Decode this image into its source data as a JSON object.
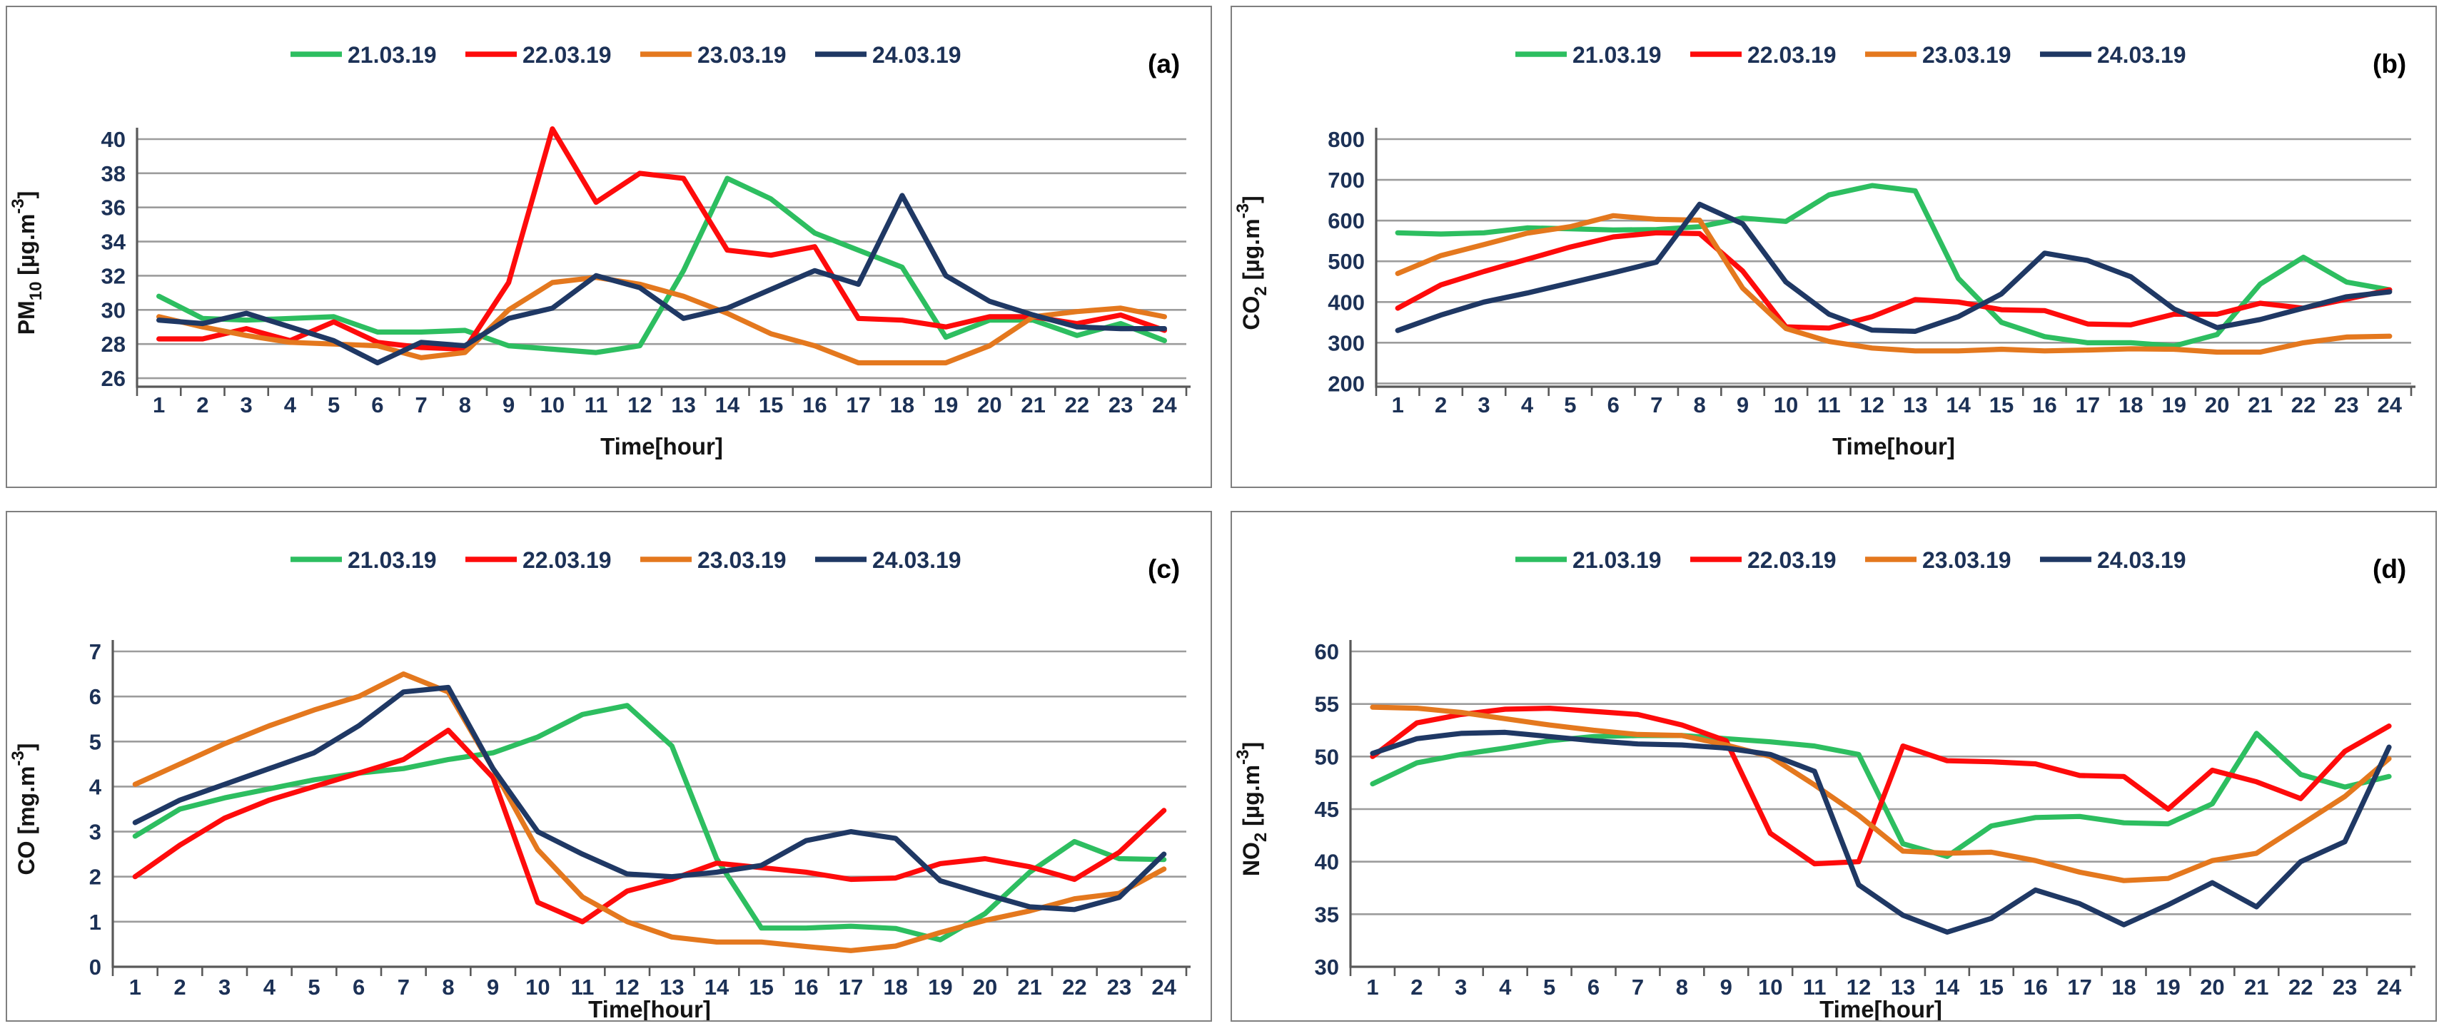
{
  "colors": {
    "green": "#2dbe60",
    "red": "#fe0b0b",
    "orange": "#e4781e",
    "navy": "#1f3864",
    "gridline": "#9c9c9c",
    "axis_line": "#595959",
    "tick_text": "#1c3156",
    "title_text": "#141414",
    "panel_border": "#7f7f7f",
    "panel_letter": "#000000"
  },
  "legend": {
    "position": "top",
    "items": [
      {
        "label": "21.03.19",
        "color_key": "green"
      },
      {
        "label": "22.03.19",
        "color_key": "red"
      },
      {
        "label": "23.03.19",
        "color_key": "orange"
      },
      {
        "label": "24.03.19",
        "color_key": "navy"
      }
    ]
  },
  "chart_data": [
    {
      "id": "a",
      "panel_label": "(a)",
      "type": "line",
      "pollutant": "PM10",
      "title": "",
      "ylabel_plain": "PM10 [µg.m-3]",
      "ylabel_parts": [
        {
          "t": "PM"
        },
        {
          "t": "10",
          "style": "sub"
        },
        {
          "t": " [µg.m"
        },
        {
          "t": "-3",
          "style": "sup"
        },
        {
          "t": "]"
        }
      ],
      "xlabel": "Time[hour]",
      "x": [
        1,
        2,
        3,
        4,
        5,
        6,
        7,
        8,
        9,
        10,
        11,
        12,
        13,
        14,
        15,
        16,
        17,
        18,
        19,
        20,
        21,
        22,
        23,
        24
      ],
      "ylim": [
        25.5,
        41
      ],
      "yticks": [
        26,
        28,
        30,
        32,
        34,
        36,
        38,
        40
      ],
      "grid": true,
      "legend_position": "top",
      "series": [
        {
          "name": "21.03.19",
          "color_key": "green",
          "values": [
            30.8,
            29.5,
            29.4,
            29.5,
            29.6,
            28.7,
            28.7,
            28.8,
            27.9,
            27.7,
            27.5,
            27.9,
            32.3,
            37.7,
            36.5,
            34.5,
            33.5,
            32.5,
            28.4,
            29.4,
            29.4,
            28.5,
            29.2,
            28.2
          ]
        },
        {
          "name": "22.03.19",
          "color_key": "red",
          "values": [
            28.3,
            28.3,
            28.9,
            28.2,
            29.3,
            28.1,
            27.8,
            27.7,
            31.6,
            40.6,
            36.3,
            38.0,
            37.7,
            33.5,
            33.2,
            33.7,
            29.5,
            29.4,
            29.0,
            29.6,
            29.6,
            29.2,
            29.7,
            28.8
          ]
        },
        {
          "name": "23.03.19",
          "color_key": "orange",
          "values": [
            29.6,
            29.0,
            28.5,
            28.1,
            28.0,
            27.9,
            27.2,
            27.5,
            30.0,
            31.6,
            31.9,
            31.5,
            30.8,
            29.8,
            28.6,
            27.9,
            26.9,
            26.9,
            26.9,
            27.9,
            29.6,
            29.9,
            30.1,
            29.6
          ]
        },
        {
          "name": "24.03.19",
          "color_key": "navy",
          "values": [
            29.4,
            29.2,
            29.8,
            29.0,
            28.2,
            26.9,
            28.1,
            27.9,
            29.5,
            30.1,
            32.0,
            31.3,
            29.5,
            30.1,
            31.2,
            32.3,
            31.5,
            36.7,
            32.0,
            30.5,
            29.7,
            29.0,
            28.9,
            28.9
          ]
        }
      ]
    },
    {
      "id": "b",
      "panel_label": "(b)",
      "type": "line",
      "pollutant": "CO2",
      "title": "",
      "ylabel_plain": "CO2 [µg.m-3]",
      "ylabel_parts": [
        {
          "t": "CO"
        },
        {
          "t": "2",
          "style": "sub"
        },
        {
          "t": " [µg.m"
        },
        {
          "t": "-3",
          "style": "sup"
        },
        {
          "t": "]"
        }
      ],
      "xlabel": "Time[hour]",
      "x": [
        1,
        2,
        3,
        4,
        5,
        6,
        7,
        8,
        9,
        10,
        11,
        12,
        13,
        14,
        15,
        16,
        17,
        18,
        19,
        20,
        21,
        22,
        23,
        24
      ],
      "ylim": [
        192,
        820
      ],
      "yticks": [
        200,
        300,
        400,
        500,
        600,
        700,
        800
      ],
      "grid": true,
      "legend_position": "top",
      "series": [
        {
          "name": "21.03.19",
          "color_key": "green",
          "values": [
            570,
            567,
            570,
            582,
            580,
            577,
            578,
            585,
            606,
            598,
            663,
            686,
            673,
            458,
            350,
            315,
            300,
            300,
            292,
            320,
            444,
            510,
            449,
            430
          ]
        },
        {
          "name": "22.03.19",
          "color_key": "red",
          "values": [
            385,
            442,
            475,
            505,
            535,
            560,
            570,
            568,
            476,
            339,
            336,
            364,
            406,
            400,
            381,
            379,
            346,
            344,
            370,
            370,
            397,
            385,
            407,
            430
          ]
        },
        {
          "name": "23.03.19",
          "color_key": "orange",
          "values": [
            470,
            514,
            541,
            569,
            585,
            612,
            603,
            601,
            434,
            335,
            303,
            287,
            280,
            280,
            284,
            280,
            282,
            285,
            284,
            277,
            277,
            300,
            314,
            316
          ]
        },
        {
          "name": "24.03.19",
          "color_key": "navy",
          "values": [
            330,
            368,
            400,
            422,
            447,
            472,
            498,
            640,
            592,
            449,
            370,
            331,
            328,
            364,
            420,
            520,
            502,
            462,
            383,
            337,
            357,
            385,
            413,
            425
          ]
        }
      ]
    },
    {
      "id": "c",
      "panel_label": "(c)",
      "type": "line",
      "pollutant": "CO",
      "title": "",
      "ylabel_plain": "CO [mg.m-3]",
      "ylabel_parts": [
        {
          "t": "CO [mg.m"
        },
        {
          "t": "-3",
          "style": "sup"
        },
        {
          "t": "]"
        }
      ],
      "xlabel": "Time[hour]",
      "x": [
        1,
        2,
        3,
        4,
        5,
        6,
        7,
        8,
        9,
        10,
        11,
        12,
        13,
        14,
        15,
        16,
        17,
        18,
        19,
        20,
        21,
        22,
        23,
        24
      ],
      "ylim": [
        0,
        7.3
      ],
      "yticks": [
        0,
        1,
        2,
        3,
        4,
        5,
        6,
        7
      ],
      "grid": true,
      "legend_position": "top",
      "series": [
        {
          "name": "21.03.19",
          "color_key": "green",
          "values": [
            2.9,
            3.5,
            3.75,
            3.95,
            4.15,
            4.3,
            4.4,
            4.6,
            4.75,
            5.1,
            5.6,
            5.8,
            4.9,
            2.4,
            0.86,
            0.86,
            0.9,
            0.85,
            0.6,
            1.18,
            2.1,
            2.78,
            2.4,
            2.38
          ]
        },
        {
          "name": "22.03.19",
          "color_key": "red",
          "values": [
            2.0,
            2.7,
            3.3,
            3.7,
            4.0,
            4.3,
            4.6,
            5.25,
            4.2,
            1.43,
            1.0,
            1.68,
            1.94,
            2.3,
            2.2,
            2.1,
            1.94,
            1.97,
            2.29,
            2.4,
            2.22,
            1.94,
            2.54,
            3.47
          ]
        },
        {
          "name": "23.03.19",
          "color_key": "orange",
          "values": [
            4.05,
            4.5,
            4.95,
            5.35,
            5.7,
            6.0,
            6.5,
            6.1,
            4.4,
            2.6,
            1.55,
            1.0,
            0.66,
            0.55,
            0.55,
            0.45,
            0.36,
            0.46,
            0.76,
            1.03,
            1.24,
            1.51,
            1.63,
            2.17
          ]
        },
        {
          "name": "24.03.19",
          "color_key": "navy",
          "values": [
            3.2,
            3.7,
            4.05,
            4.4,
            4.75,
            5.35,
            6.1,
            6.2,
            4.4,
            3.0,
            2.5,
            2.06,
            2.0,
            2.1,
            2.25,
            2.8,
            3.0,
            2.85,
            1.91,
            1.61,
            1.33,
            1.27,
            1.54,
            2.5
          ]
        }
      ]
    },
    {
      "id": "d",
      "panel_label": "(d)",
      "type": "line",
      "pollutant": "NO2",
      "title": "",
      "ylabel_plain": "NO2 [µg.m-3]",
      "ylabel_parts": [
        {
          "t": "NO"
        },
        {
          "t": "2",
          "style": "sub"
        },
        {
          "t": " [µg.m"
        },
        {
          "t": "-3",
          "style": "sup"
        },
        {
          "t": "]"
        }
      ],
      "xlabel": "Time[hour]",
      "x": [
        1,
        2,
        3,
        4,
        5,
        6,
        7,
        8,
        9,
        10,
        11,
        12,
        13,
        14,
        15,
        16,
        17,
        18,
        19,
        20,
        21,
        22,
        23,
        24
      ],
      "ylim": [
        30,
        60.8
      ],
      "yticks": [
        30,
        35,
        40,
        45,
        50,
        55,
        60
      ],
      "grid": true,
      "legend_position": "top",
      "series": [
        {
          "name": "21.03.19",
          "color_key": "green",
          "values": [
            47.4,
            49.4,
            50.2,
            50.8,
            51.5,
            51.9,
            52.0,
            52.0,
            51.7,
            51.4,
            51.0,
            50.2,
            41.7,
            40.5,
            43.4,
            44.2,
            44.3,
            43.7,
            43.6,
            45.5,
            52.2,
            48.3,
            47.1,
            48.1
          ]
        },
        {
          "name": "22.03.19",
          "color_key": "red",
          "values": [
            50.0,
            53.2,
            54.0,
            54.5,
            54.6,
            54.3,
            54.0,
            53.0,
            51.5,
            42.7,
            39.8,
            40.0,
            51.0,
            49.6,
            49.5,
            49.3,
            48.2,
            48.1,
            45.0,
            48.7,
            47.6,
            46.0,
            50.5,
            52.9
          ]
        },
        {
          "name": "23.03.19",
          "color_key": "orange",
          "values": [
            54.7,
            54.6,
            54.2,
            53.6,
            53.0,
            52.5,
            52.1,
            52.0,
            51.1,
            50.0,
            47.3,
            44.4,
            41.0,
            40.8,
            40.9,
            40.1,
            39.0,
            38.2,
            38.4,
            40.1,
            40.8,
            43.5,
            46.2,
            49.8
          ]
        },
        {
          "name": "24.03.19",
          "color_key": "navy",
          "values": [
            50.3,
            51.7,
            52.2,
            52.3,
            51.9,
            51.5,
            51.2,
            51.1,
            50.8,
            50.2,
            48.6,
            37.8,
            34.9,
            33.3,
            34.6,
            37.3,
            36.0,
            34.0,
            35.9,
            38.0,
            35.7,
            40.0,
            41.9,
            50.9
          ]
        }
      ]
    }
  ]
}
